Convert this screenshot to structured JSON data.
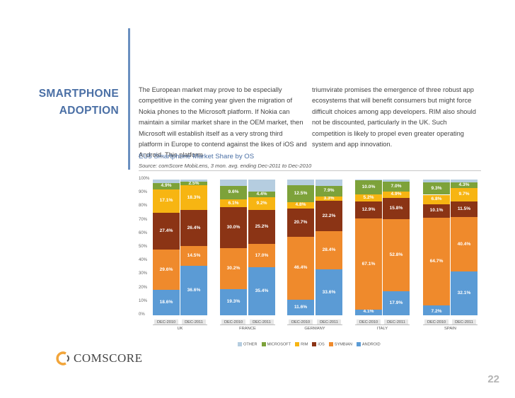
{
  "slide": {
    "section_title_line1": "SMARTPHONE",
    "section_title_line2": "ADOPTION",
    "paragraph_col1": "The European market may prove to be especially competitive in the coming year given the migration of Nokia phones to the Microsoft platform. If Nokia can maintain a similar market share in the OEM market, then Microsoft will establish itself as a very strong third platform in Europe to contend against the likes of iOS and Android. This platform",
    "paragraph_col2": "triumvirate promises the emergence of three robust app ecosystems that will benefit consumers but might force difficult choices among app developers. RIM also should not be discounted, particularly in the UK. Such competition is likely to propel even greater operating system and app innovation.",
    "page_number": "22",
    "logo_text": "COMSCORE"
  },
  "colors": {
    "other": "#b5cde0",
    "microsoft": "#7da23a",
    "rim": "#f7b512",
    "ios": "#8b3415",
    "symbian": "#ef8a2c",
    "android": "#5b9bd5",
    "title_blue": "#4a6fa5"
  },
  "chart_data": {
    "type": "bar",
    "stacked": true,
    "title": "EU5 Smartphone Market Share by OS",
    "subtitle": "Source: comScore MobiLens, 3 mon. avg. ending Dec-2011 to Dec-2010",
    "ylim": [
      0,
      100
    ],
    "yticks": [
      "0%",
      "10%",
      "20%",
      "30%",
      "40%",
      "50%",
      "60%",
      "70%",
      "80%",
      "90%",
      "100%"
    ],
    "countries": [
      "UK",
      "FRANCE",
      "GERMANY",
      "ITALY",
      "SPAIN"
    ],
    "x_labels": [
      "DEC-2010",
      "DEC-2011"
    ],
    "series_order": [
      "android",
      "symbian",
      "ios",
      "rim",
      "microsoft",
      "other"
    ],
    "legend": [
      {
        "key": "other",
        "label": "OTHER"
      },
      {
        "key": "microsoft",
        "label": "MICROSOFT"
      },
      {
        "key": "rim",
        "label": "RIM"
      },
      {
        "key": "ios",
        "label": "iOS"
      },
      {
        "key": "symbian",
        "label": "SYMBIAN"
      },
      {
        "key": "android",
        "label": "ANDROID"
      }
    ],
    "bars": [
      {
        "country": 0,
        "period": "DEC-2010",
        "values": {
          "android": 18.6,
          "symbian": 29.6,
          "ios": 27.4,
          "rim": 17.1,
          "microsoft": 4.9,
          "other": 2.4
        },
        "labels": {
          "android": "18.6%",
          "symbian": "29.6%",
          "ios": "27.4%",
          "rim": "17.1%",
          "microsoft": "4.9%"
        }
      },
      {
        "country": 0,
        "period": "DEC-2011",
        "values": {
          "android": 36.6,
          "symbian": 14.5,
          "ios": 26.4,
          "rim": 18.3,
          "microsoft": 2.5,
          "other": 1.7
        },
        "labels": {
          "android": "36.6%",
          "symbian": "14.5%",
          "ios": "26.4%",
          "rim": "18.3%",
          "microsoft": "2.5%"
        }
      },
      {
        "country": 1,
        "period": "DEC-2010",
        "values": {
          "android": 19.3,
          "symbian": 30.2,
          "ios": 30.0,
          "rim": 6.1,
          "microsoft": 9.6,
          "other": 4.8
        },
        "labels": {
          "android": "19.3%",
          "symbian": "30.2%",
          "ios": "30.0%",
          "rim": "6.1%",
          "microsoft": "9.6%"
        }
      },
      {
        "country": 1,
        "period": "DEC-2011",
        "values": {
          "android": 35.4,
          "symbian": 17.0,
          "ios": 25.2,
          "rim": 9.2,
          "microsoft": 4.4,
          "other": 8.8
        },
        "labels": {
          "android": "35.4%",
          "symbian": "17.0%",
          "ios": "25.2%",
          "rim": "9.2%",
          "microsoft": "4.4%"
        }
      },
      {
        "country": 2,
        "period": "DEC-2010",
        "values": {
          "android": 11.6,
          "symbian": 46.4,
          "ios": 20.7,
          "rim": 4.8,
          "microsoft": 12.5,
          "other": 4.0
        },
        "labels": {
          "android": "11.6%",
          "symbian": "46.4%",
          "ios": "20.7%",
          "rim": "4.8%",
          "microsoft": "12.5%"
        }
      },
      {
        "country": 2,
        "period": "DEC-2011",
        "values": {
          "android": 33.6,
          "symbian": 28.4,
          "ios": 22.2,
          "rim": 3.3,
          "microsoft": 7.9,
          "other": 4.6
        },
        "labels": {
          "android": "33.6%",
          "symbian": "28.4%",
          "ios": "22.2%",
          "rim": "3.3%",
          "microsoft": "7.9%"
        }
      },
      {
        "country": 3,
        "period": "DEC-2010",
        "values": {
          "android": 4.1,
          "symbian": 67.1,
          "ios": 12.9,
          "rim": 5.2,
          "microsoft": 10.0,
          "other": 0.7
        },
        "labels": {
          "android": "4.1%",
          "symbian": "67.1%",
          "ios": "12.9%",
          "rim": "5.2%",
          "microsoft": "10.0%"
        }
      },
      {
        "country": 3,
        "period": "DEC-2011",
        "values": {
          "android": 17.9,
          "symbian": 52.8,
          "ios": 15.8,
          "rim": 4.9,
          "microsoft": 7.0,
          "other": 1.6
        },
        "labels": {
          "android": "17.9%",
          "symbian": "52.8%",
          "ios": "15.8%",
          "rim": "4.9%",
          "microsoft": "7.0%"
        }
      },
      {
        "country": 4,
        "period": "DEC-2010",
        "values": {
          "android": 7.2,
          "symbian": 64.7,
          "ios": 10.1,
          "rim": 6.8,
          "microsoft": 9.3,
          "other": 1.9
        },
        "labels": {
          "android": "7.2%",
          "symbian": "64.7%",
          "ios": "10.1%",
          "rim": "6.8%",
          "microsoft": "9.3%"
        }
      },
      {
        "country": 4,
        "period": "DEC-2011",
        "values": {
          "android": 32.1,
          "symbian": 40.4,
          "ios": 11.5,
          "rim": 9.7,
          "microsoft": 4.3,
          "other": 2.0
        },
        "labels": {
          "android": "32.1%",
          "symbian": "40.4%",
          "ios": "11.5%",
          "rim": "9.7%",
          "microsoft": "4.3%"
        }
      }
    ]
  }
}
